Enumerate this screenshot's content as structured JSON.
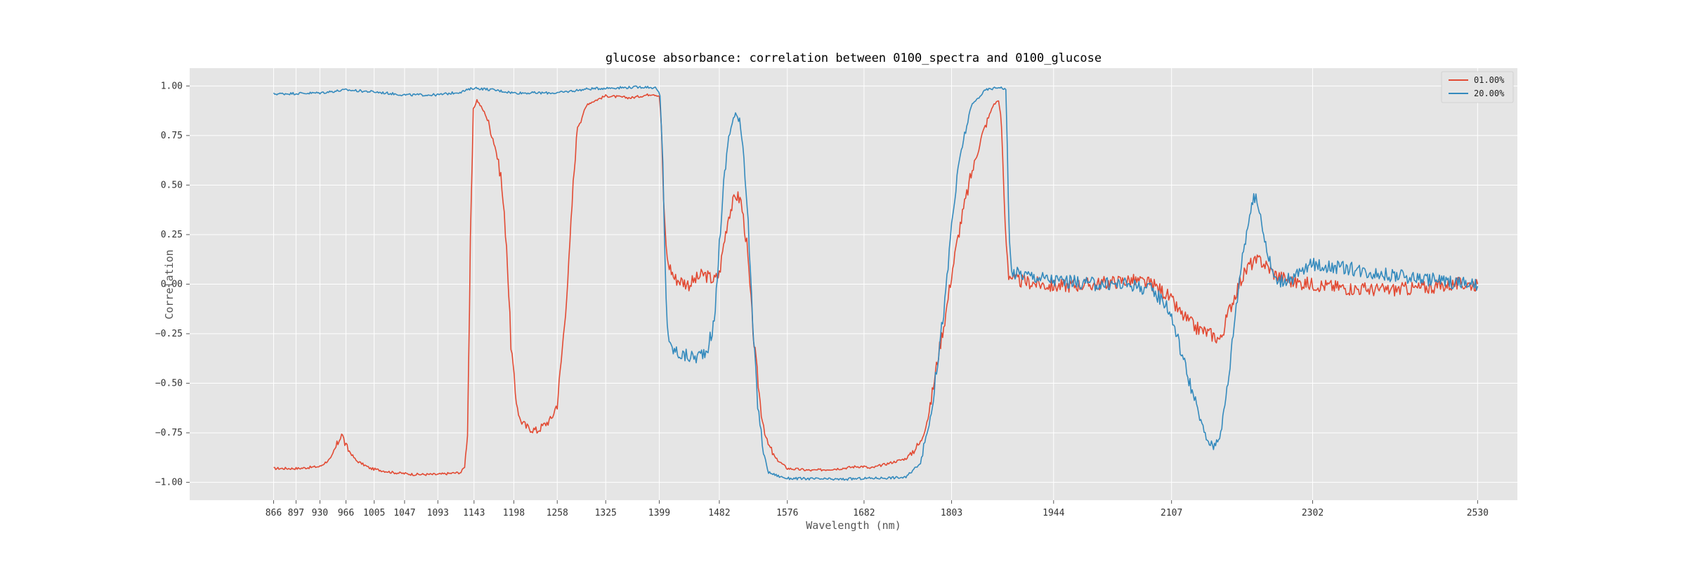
{
  "colors": {
    "background": "#ffffff",
    "plot_background": "#e5e5e5",
    "grid": "#ffffff",
    "text": "#333333",
    "series_1": "#e24a33",
    "series_2": "#348abd"
  },
  "chart_data": {
    "type": "line",
    "title": "glucose absorbance: correlation between 0100_spectra and 0100_glucose",
    "xlabel": "Wavelength (nm)",
    "ylabel": "Correlation",
    "grid": true,
    "legend_placement": "top-right",
    "xlim": [
      750,
      2585
    ],
    "ylim": [
      -1.09,
      1.09
    ],
    "x_ticks": [
      866,
      897,
      930,
      966,
      1005,
      1047,
      1093,
      1143,
      1198,
      1258,
      1325,
      1399,
      1482,
      1576,
      1682,
      1803,
      1944,
      2107,
      2302,
      2530
    ],
    "x_tick_labels": [
      "866",
      "897",
      "930",
      "966",
      "1005",
      "1047",
      "1093",
      "1143",
      "1198",
      "1258",
      "1325",
      "1399",
      "1482",
      "1576",
      "1682",
      "1803",
      "1944",
      "2107",
      "2302",
      "2530"
    ],
    "y_ticks": [
      1.0,
      0.75,
      0.5,
      0.25,
      0.0,
      -0.25,
      -0.5,
      -0.75,
      -1.0
    ],
    "y_tick_labels": [
      "1.00",
      "0.75",
      "0.50",
      "0.25",
      "0.00",
      "−0.25",
      "−0.50",
      "−0.75",
      "−1.00"
    ],
    "series": [
      {
        "name": "01.00%",
        "color": "#e24a33",
        "noise": 0.035,
        "points": [
          [
            866,
            -0.93
          ],
          [
            900,
            -0.93
          ],
          [
            930,
            -0.92
          ],
          [
            945,
            -0.88
          ],
          [
            955,
            -0.8
          ],
          [
            960,
            -0.75
          ],
          [
            966,
            -0.82
          ],
          [
            980,
            -0.89
          ],
          [
            1000,
            -0.93
          ],
          [
            1030,
            -0.95
          ],
          [
            1060,
            -0.96
          ],
          [
            1093,
            -0.96
          ],
          [
            1125,
            -0.95
          ],
          [
            1130,
            -0.92
          ],
          [
            1134,
            -0.75
          ],
          [
            1138,
            0.2
          ],
          [
            1142,
            0.88
          ],
          [
            1147,
            0.93
          ],
          [
            1160,
            0.85
          ],
          [
            1172,
            0.7
          ],
          [
            1180,
            0.55
          ],
          [
            1188,
            0.2
          ],
          [
            1194,
            -0.3
          ],
          [
            1200,
            -0.55
          ],
          [
            1206,
            -0.68
          ],
          [
            1215,
            -0.72
          ],
          [
            1230,
            -0.74
          ],
          [
            1250,
            -0.68
          ],
          [
            1258,
            -0.6
          ],
          [
            1262,
            -0.45
          ],
          [
            1268,
            -0.2
          ],
          [
            1274,
            0.1
          ],
          [
            1280,
            0.5
          ],
          [
            1286,
            0.8
          ],
          [
            1300,
            0.91
          ],
          [
            1325,
            0.95
          ],
          [
            1360,
            0.94
          ],
          [
            1390,
            0.96
          ],
          [
            1399,
            0.95
          ],
          [
            1402,
            0.8
          ],
          [
            1405,
            0.4
          ],
          [
            1410,
            0.12
          ],
          [
            1420,
            0.03
          ],
          [
            1440,
            0.0
          ],
          [
            1460,
            0.05
          ],
          [
            1475,
            0.02
          ],
          [
            1482,
            0.05
          ],
          [
            1488,
            0.2
          ],
          [
            1495,
            0.35
          ],
          [
            1505,
            0.45
          ],
          [
            1512,
            0.42
          ],
          [
            1520,
            0.2
          ],
          [
            1530,
            -0.3
          ],
          [
            1540,
            -0.65
          ],
          [
            1548,
            -0.8
          ],
          [
            1560,
            -0.88
          ],
          [
            1576,
            -0.93
          ],
          [
            1610,
            -0.94
          ],
          [
            1650,
            -0.93
          ],
          [
            1672,
            -0.92
          ],
          [
            1682,
            -0.92
          ],
          [
            1690,
            -0.93
          ],
          [
            1710,
            -0.91
          ],
          [
            1740,
            -0.88
          ],
          [
            1760,
            -0.8
          ],
          [
            1772,
            -0.65
          ],
          [
            1785,
            -0.35
          ],
          [
            1795,
            -0.15
          ],
          [
            1803,
            0.05
          ],
          [
            1815,
            0.3
          ],
          [
            1830,
            0.55
          ],
          [
            1845,
            0.75
          ],
          [
            1860,
            0.9
          ],
          [
            1868,
            0.93
          ],
          [
            1872,
            0.8
          ],
          [
            1877,
            0.3
          ],
          [
            1882,
            0.05
          ],
          [
            1890,
            0.02
          ],
          [
            1944,
            -0.01
          ],
          [
            2000,
            0.0
          ],
          [
            2050,
            0.02
          ],
          [
            2080,
            0.0
          ],
          [
            2100,
            -0.05
          ],
          [
            2120,
            -0.15
          ],
          [
            2140,
            -0.22
          ],
          [
            2160,
            -0.25
          ],
          [
            2175,
            -0.28
          ],
          [
            2185,
            -0.15
          ],
          [
            2200,
            0.0
          ],
          [
            2215,
            0.1
          ],
          [
            2230,
            0.12
          ],
          [
            2250,
            0.05
          ],
          [
            2275,
            0.01
          ],
          [
            2302,
            0.0
          ],
          [
            2350,
            -0.02
          ],
          [
            2400,
            -0.03
          ],
          [
            2450,
            -0.02
          ],
          [
            2500,
            0.0
          ],
          [
            2530,
            0.0
          ]
        ]
      },
      {
        "name": "20.00%",
        "color": "#348abd",
        "noise": 0.035,
        "points": [
          [
            866,
            0.96
          ],
          [
            930,
            0.965
          ],
          [
            966,
            0.98
          ],
          [
            1005,
            0.97
          ],
          [
            1047,
            0.955
          ],
          [
            1093,
            0.955
          ],
          [
            1125,
            0.97
          ],
          [
            1143,
            0.99
          ],
          [
            1170,
            0.98
          ],
          [
            1198,
            0.965
          ],
          [
            1258,
            0.965
          ],
          [
            1300,
            0.985
          ],
          [
            1330,
            0.99
          ],
          [
            1380,
            0.995
          ],
          [
            1395,
            0.99
          ],
          [
            1400,
            0.95
          ],
          [
            1404,
            0.6
          ],
          [
            1407,
            0.1
          ],
          [
            1410,
            -0.2
          ],
          [
            1414,
            -0.32
          ],
          [
            1430,
            -0.36
          ],
          [
            1450,
            -0.37
          ],
          [
            1465,
            -0.33
          ],
          [
            1475,
            -0.2
          ],
          [
            1482,
            0.2
          ],
          [
            1488,
            0.5
          ],
          [
            1495,
            0.75
          ],
          [
            1503,
            0.85
          ],
          [
            1510,
            0.84
          ],
          [
            1516,
            0.65
          ],
          [
            1522,
            0.3
          ],
          [
            1528,
            -0.2
          ],
          [
            1535,
            -0.6
          ],
          [
            1543,
            -0.85
          ],
          [
            1550,
            -0.95
          ],
          [
            1565,
            -0.97
          ],
          [
            1576,
            -0.98
          ],
          [
            1650,
            -0.985
          ],
          [
            1682,
            -0.98
          ],
          [
            1740,
            -0.975
          ],
          [
            1760,
            -0.9
          ],
          [
            1775,
            -0.65
          ],
          [
            1785,
            -0.35
          ],
          [
            1795,
            -0.05
          ],
          [
            1803,
            0.3
          ],
          [
            1815,
            0.65
          ],
          [
            1830,
            0.9
          ],
          [
            1850,
            0.98
          ],
          [
            1870,
            0.995
          ],
          [
            1878,
            0.98
          ],
          [
            1880,
            0.7
          ],
          [
            1883,
            0.2
          ],
          [
            1886,
            0.06
          ],
          [
            1900,
            0.05
          ],
          [
            1944,
            0.02
          ],
          [
            2000,
            0.0
          ],
          [
            2050,
            0.0
          ],
          [
            2080,
            -0.03
          ],
          [
            2100,
            -0.1
          ],
          [
            2110,
            -0.2
          ],
          [
            2125,
            -0.4
          ],
          [
            2140,
            -0.6
          ],
          [
            2155,
            -0.78
          ],
          [
            2165,
            -0.82
          ],
          [
            2175,
            -0.75
          ],
          [
            2185,
            -0.5
          ],
          [
            2195,
            -0.15
          ],
          [
            2205,
            0.15
          ],
          [
            2215,
            0.35
          ],
          [
            2222,
            0.44
          ],
          [
            2230,
            0.35
          ],
          [
            2240,
            0.15
          ],
          [
            2250,
            0.02
          ],
          [
            2270,
            0.02
          ],
          [
            2302,
            0.1
          ],
          [
            2350,
            0.08
          ],
          [
            2400,
            0.05
          ],
          [
            2450,
            0.03
          ],
          [
            2500,
            0.01
          ],
          [
            2530,
            -0.01
          ]
        ]
      }
    ]
  }
}
